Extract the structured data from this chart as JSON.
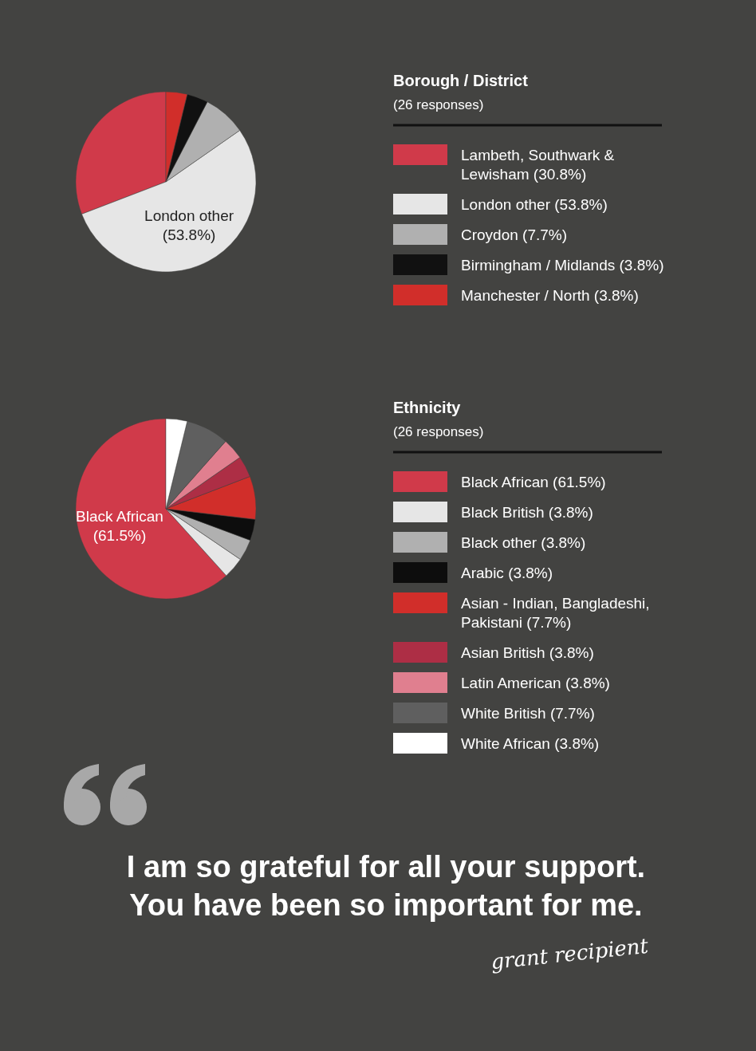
{
  "chart_data": [
    {
      "type": "pie",
      "title": "Borough  / District",
      "subtitle": "(26 responses)",
      "legend": "right",
      "categories": [
        "Lambeth, Southwark & Lewisham (30.8%)",
        "London other (53.8%)",
        "Croydon (7.7%)",
        "Birmingham / Midlands (3.8%)",
        "Manchester / North (3.8%)"
      ],
      "values": [
        30.8,
        53.8,
        7.7,
        3.8,
        3.8
      ],
      "colors": [
        "#d03a4a",
        "#e6e6e6",
        "#b0b0b0",
        "#111111",
        "#d12e2a"
      ],
      "value_labels": [
        null,
        "London other (53.8%)",
        null,
        null,
        null
      ]
    },
    {
      "type": "pie",
      "title": "Ethnicity",
      "subtitle": "(26 responses)",
      "legend": "right",
      "categories": [
        "Black African (61.5%)",
        "Black British (3.8%)",
        "Black other (3.8%)",
        "Arabic (3.8%)",
        "Asian - Indian, Bangladeshi, Pakistani (7.7%)",
        "Asian British (3.8%)",
        "Latin American (3.8%)",
        "White British (7.7%)",
        "White African (3.8%)"
      ],
      "values": [
        61.5,
        3.8,
        3.8,
        3.8,
        7.7,
        3.8,
        3.8,
        7.7,
        3.8
      ],
      "colors": [
        "#d03a4a",
        "#e6e6e6",
        "#b0b0b0",
        "#0d0d0d",
        "#d12e2a",
        "#ad2e45",
        "#e07f8f",
        "#5f5f5f",
        "#ffffff"
      ],
      "value_labels": [
        "Black African (61.5%)",
        null,
        null,
        null,
        null,
        null,
        null,
        null,
        null
      ]
    },
    {
      "type": "other",
      "annotations": [
        "I am so grateful for all your support. You have been so important for me.",
        "grant recipient"
      ]
    }
  ]
}
